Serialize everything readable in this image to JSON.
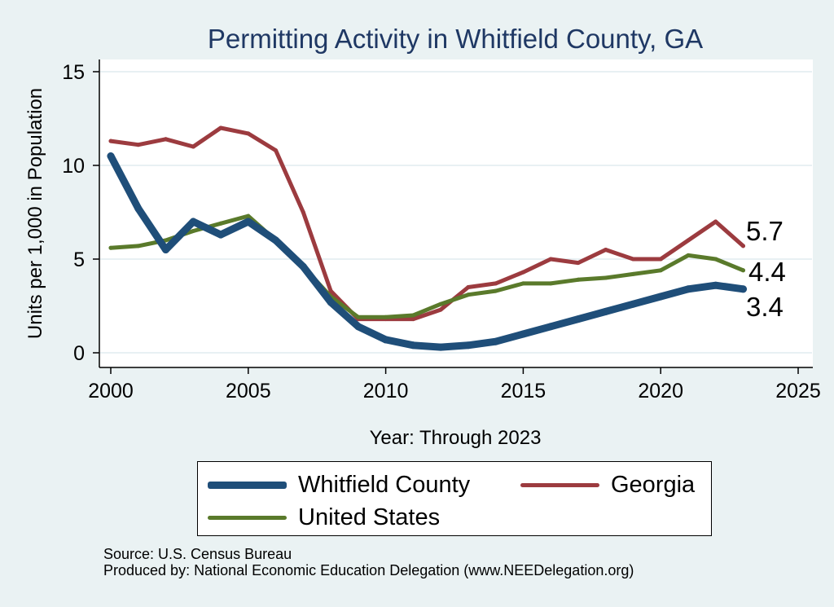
{
  "chart_data": {
    "type": "line",
    "title": "Permitting Activity in Whitfield County, GA",
    "xlabel": "Year: Through 2023",
    "ylabel": "Units per 1,000 in Population",
    "xlim": [
      2000,
      2025
    ],
    "ylim": [
      0,
      15
    ],
    "xticks": [
      2000,
      2005,
      2010,
      2015,
      2020,
      2025
    ],
    "yticks": [
      0,
      5,
      10,
      15
    ],
    "grid": "horizontal",
    "legend_position": "bottom",
    "x": [
      2000,
      2001,
      2002,
      2003,
      2004,
      2005,
      2006,
      2007,
      2008,
      2009,
      2010,
      2011,
      2012,
      2013,
      2014,
      2015,
      2016,
      2017,
      2018,
      2019,
      2020,
      2021,
      2022,
      2023
    ],
    "series": [
      {
        "name": "Whitfield County",
        "color": "#1f4e79",
        "values": [
          10.5,
          7.7,
          5.5,
          7.0,
          6.3,
          7.0,
          6.0,
          4.6,
          2.7,
          1.4,
          0.7,
          0.4,
          0.3,
          0.4,
          0.6,
          1.0,
          1.4,
          1.8,
          2.2,
          2.6,
          3.0,
          3.4,
          3.6,
          3.4
        ],
        "end_label": "3.4"
      },
      {
        "name": "Georgia",
        "color": "#9c3b3f",
        "values": [
          11.3,
          11.1,
          11.4,
          11.0,
          12.0,
          11.7,
          10.8,
          7.5,
          3.3,
          1.8,
          1.8,
          1.8,
          2.3,
          3.5,
          3.7,
          4.3,
          5.0,
          4.8,
          5.5,
          5.0,
          5.0,
          6.0,
          7.0,
          5.7
        ],
        "end_label": "5.7"
      },
      {
        "name": "United States",
        "color": "#5a7a2b",
        "values": [
          5.6,
          5.7,
          6.0,
          6.5,
          6.9,
          7.3,
          6.0,
          4.6,
          3.0,
          1.9,
          1.9,
          2.0,
          2.6,
          3.1,
          3.3,
          3.7,
          3.7,
          3.9,
          4.0,
          4.2,
          4.4,
          5.2,
          5.0,
          4.4
        ],
        "end_label": "4.4"
      }
    ]
  },
  "notes": {
    "source": "Source: U.S. Census Bureau",
    "produced_by": "Produced by: National Economic Education Delegation (www.NEEDelegation.org)"
  }
}
